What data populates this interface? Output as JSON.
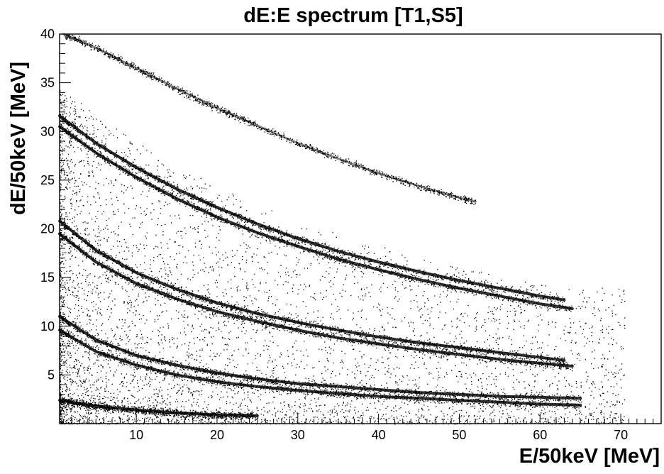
{
  "chart_data": {
    "type": "scatter",
    "title": "dE:E spectrum [T1,S5]",
    "xlabel": "E/50keV [MeV]",
    "ylabel": "dE/50keV [MeV]",
    "xlim": [
      0.5,
      75
    ],
    "ylim": [
      0,
      40
    ],
    "x_ticks": [
      10,
      20,
      30,
      40,
      50,
      60,
      70
    ],
    "y_ticks": [
      5,
      10,
      15,
      20,
      25,
      30,
      35,
      40
    ],
    "grid": false,
    "legend": "none",
    "marker_color": "#000000",
    "series": [
      {
        "points": [
          [
            0.5,
            2.4
          ],
          [
            5,
            1.8
          ],
          [
            10,
            1.4
          ],
          [
            15,
            1.1
          ],
          [
            20,
            0.9
          ],
          [
            25,
            0.8
          ]
        ]
      },
      {
        "points": [
          [
            0.5,
            9.6
          ],
          [
            5,
            7.4
          ],
          [
            10,
            6.0
          ],
          [
            15,
            5.0
          ],
          [
            20,
            4.3
          ],
          [
            25,
            3.8
          ],
          [
            30,
            3.4
          ],
          [
            35,
            3.1
          ],
          [
            40,
            2.8
          ],
          [
            45,
            2.6
          ],
          [
            50,
            2.4
          ],
          [
            55,
            2.2
          ],
          [
            60,
            2.0
          ],
          [
            65,
            1.9
          ]
        ]
      },
      {
        "points": [
          [
            0.5,
            11.0
          ],
          [
            5,
            8.6
          ],
          [
            10,
            7.0
          ],
          [
            15,
            6.0
          ],
          [
            20,
            5.2
          ],
          [
            25,
            4.6
          ],
          [
            30,
            4.1
          ],
          [
            35,
            3.8
          ],
          [
            40,
            3.5
          ],
          [
            45,
            3.2
          ],
          [
            50,
            3.0
          ],
          [
            55,
            2.8
          ],
          [
            60,
            2.7
          ],
          [
            65,
            2.6
          ]
        ]
      },
      {
        "points": [
          [
            0.5,
            19.5
          ],
          [
            5,
            16.6
          ],
          [
            10,
            14.4
          ],
          [
            15,
            12.8
          ],
          [
            20,
            11.5
          ],
          [
            25,
            10.5
          ],
          [
            30,
            9.6
          ],
          [
            35,
            8.8
          ],
          [
            40,
            8.2
          ],
          [
            45,
            7.6
          ],
          [
            50,
            7.1
          ],
          [
            55,
            6.6
          ],
          [
            60,
            6.2
          ],
          [
            64,
            5.9
          ]
        ]
      },
      {
        "points": [
          [
            0.5,
            20.8
          ],
          [
            5,
            17.8
          ],
          [
            10,
            15.5
          ],
          [
            15,
            13.8
          ],
          [
            20,
            12.4
          ],
          [
            25,
            11.3
          ],
          [
            30,
            10.4
          ],
          [
            35,
            9.6
          ],
          [
            40,
            8.9
          ],
          [
            45,
            8.3
          ],
          [
            50,
            7.8
          ],
          [
            55,
            7.3
          ],
          [
            60,
            6.8
          ],
          [
            63,
            6.5
          ]
        ]
      },
      {
        "points": [
          [
            0.5,
            30.5
          ],
          [
            5,
            27.8
          ],
          [
            10,
            25.3
          ],
          [
            15,
            23.1
          ],
          [
            20,
            21.2
          ],
          [
            25,
            19.6
          ],
          [
            30,
            18.2
          ],
          [
            35,
            16.9
          ],
          [
            40,
            15.8
          ],
          [
            45,
            14.8
          ],
          [
            50,
            13.9
          ],
          [
            55,
            13.1
          ],
          [
            60,
            12.3
          ],
          [
            64,
            11.8
          ]
        ]
      },
      {
        "points": [
          [
            0.5,
            31.6
          ],
          [
            5,
            28.8
          ],
          [
            10,
            26.3
          ],
          [
            15,
            24.1
          ],
          [
            20,
            22.2
          ],
          [
            25,
            20.5
          ],
          [
            30,
            19.0
          ],
          [
            35,
            17.7
          ],
          [
            40,
            16.6
          ],
          [
            45,
            15.6
          ],
          [
            50,
            14.7
          ],
          [
            55,
            13.9
          ],
          [
            60,
            13.1
          ],
          [
            63,
            12.7
          ]
        ]
      },
      {
        "points": [
          [
            1,
            40.0
          ],
          [
            5,
            38.6
          ],
          [
            10,
            36.5
          ],
          [
            15,
            34.4
          ],
          [
            20,
            32.4
          ],
          [
            25,
            30.6
          ],
          [
            30,
            28.8
          ],
          [
            35,
            27.2
          ],
          [
            40,
            25.7
          ],
          [
            45,
            24.4
          ],
          [
            50,
            23.2
          ],
          [
            52,
            22.8
          ]
        ]
      }
    ]
  }
}
